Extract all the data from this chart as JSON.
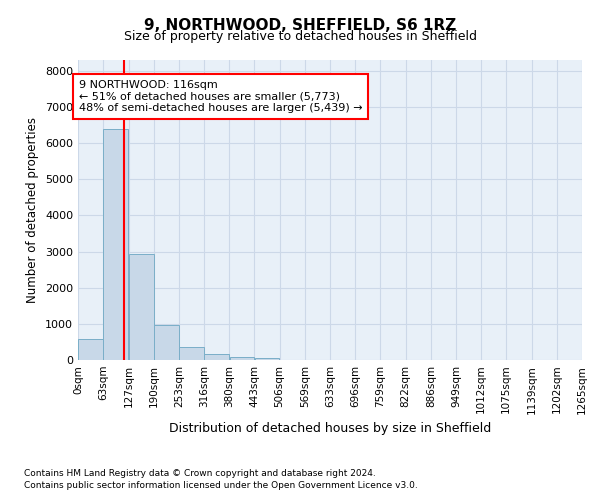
{
  "title": "9, NORTHWOOD, SHEFFIELD, S6 1RZ",
  "subtitle": "Size of property relative to detached houses in Sheffield",
  "xlabel": "Distribution of detached houses by size in Sheffield",
  "ylabel": "Number of detached properties",
  "bar_color": "#c8d8e8",
  "bar_edge_color": "#7aaec8",
  "grid_color": "#ccd8e8",
  "background_color": "#e8f0f8",
  "vline_x": 116,
  "vline_color": "red",
  "bin_edges": [
    0,
    63,
    127,
    190,
    253,
    316,
    380,
    443,
    506,
    569,
    633,
    696,
    759,
    822,
    886,
    949,
    1012,
    1075,
    1139,
    1202,
    1265
  ],
  "bin_labels": [
    "0sqm",
    "63sqm",
    "127sqm",
    "190sqm",
    "253sqm",
    "316sqm",
    "380sqm",
    "443sqm",
    "506sqm",
    "569sqm",
    "633sqm",
    "696sqm",
    "759sqm",
    "822sqm",
    "886sqm",
    "949sqm",
    "1012sqm",
    "1075sqm",
    "1139sqm",
    "1202sqm",
    "1265sqm"
  ],
  "bar_heights": [
    580,
    6390,
    2920,
    970,
    360,
    160,
    90,
    60,
    0,
    0,
    0,
    0,
    0,
    0,
    0,
    0,
    0,
    0,
    0,
    0
  ],
  "ylim": [
    0,
    8300
  ],
  "yticks": [
    0,
    1000,
    2000,
    3000,
    4000,
    5000,
    6000,
    7000,
    8000
  ],
  "annotation_text": "9 NORTHWOOD: 116sqm\n← 51% of detached houses are smaller (5,773)\n48% of semi-detached houses are larger (5,439) →",
  "annotation_box_color": "white",
  "annotation_box_edge_color": "red",
  "footer_line1": "Contains HM Land Registry data © Crown copyright and database right 2024.",
  "footer_line2": "Contains public sector information licensed under the Open Government Licence v3.0."
}
